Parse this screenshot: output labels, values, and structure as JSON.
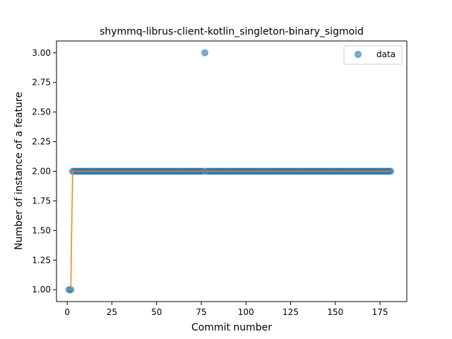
{
  "chart_data": {
    "type": "scatter",
    "title": "shymmq-librus-client-kotlin_singleton-binary_sigmoid",
    "xlabel": "Commit number",
    "ylabel": "Number of instance of a feature",
    "xlim": [
      -6,
      190
    ],
    "ylim": [
      0.9,
      3.1
    ],
    "xticks": [
      0,
      25,
      50,
      75,
      100,
      125,
      150,
      175
    ],
    "yticks": [
      1.0,
      1.25,
      1.5,
      1.75,
      2.0,
      2.25,
      2.5,
      2.75,
      3.0
    ],
    "ytick_labels": [
      "1.00",
      "1.25",
      "1.50",
      "1.75",
      "2.00",
      "2.25",
      "2.50",
      "2.75",
      "3.00"
    ],
    "grid": false,
    "legend": {
      "position": "top-right",
      "entries": [
        "data"
      ]
    },
    "series": [
      {
        "name": "data",
        "kind": "scatter",
        "color": "#1f77b4",
        "points": {
          "x_start": 1,
          "x_end": 181,
          "default_y": 2,
          "exceptions": [
            {
              "x": 1,
              "y": 1
            },
            {
              "x": 2,
              "y": 1
            },
            {
              "x": 77,
              "y": 3
            }
          ]
        }
      },
      {
        "kind": "line",
        "color": "#ff7f0e",
        "points": [
          {
            "x": 1,
            "y": 1.0
          },
          {
            "x": 2,
            "y": 1.0
          },
          {
            "x": 3,
            "y": 2.0
          },
          {
            "x": 181,
            "y": 2.0
          }
        ]
      }
    ]
  }
}
